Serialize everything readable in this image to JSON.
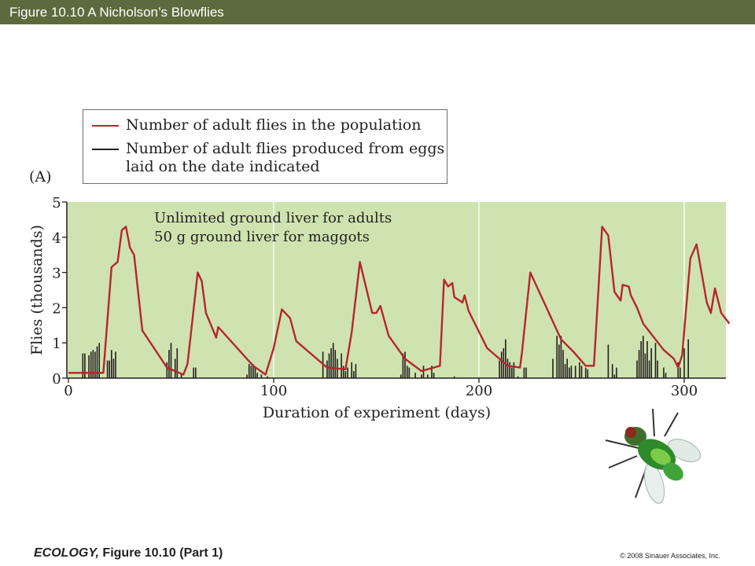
{
  "header": {
    "title": "Figure 10.10  A  Nicholson’s Blowflies"
  },
  "legend": {
    "items": [
      {
        "label": "Number of adult flies in the population",
        "color": "#b5262e"
      },
      {
        "label": "Number of adult flies produced from eggs",
        "label2": "laid on the date indicated",
        "color": "#231f20"
      }
    ]
  },
  "panel_label": "(A)",
  "annotation": {
    "line1": "Unlimited ground liver for adults",
    "line2": "50 g ground liver for maggots"
  },
  "footer": {
    "book": "ECOLOGY,",
    "caption": " Figure 10.10 (Part 1)",
    "copyright": "© 2008 Sinauer Associates, Inc."
  },
  "colors": {
    "plot_background": "#cfe3b0",
    "population_line": "#b5262e",
    "bars": "#231f20",
    "title_bar": "#5c6b3d"
  },
  "icons": {
    "fly": "blowfly-illustration-icon"
  },
  "chart_data": {
    "type": "line",
    "xlabel": "Duration of experiment (days)",
    "ylabel": "Flies (thousands)",
    "xlim": [
      0,
      320
    ],
    "ylim": [
      0,
      5
    ],
    "x_ticks": [
      0,
      100,
      200,
      300
    ],
    "y_ticks": [
      0,
      1,
      2,
      3,
      4,
      5
    ],
    "grid": "vertical gridlines at 100, 200, 300",
    "series": [
      {
        "name": "Number of adult flies in the population",
        "type": "line",
        "points": [
          [
            0,
            0.15
          ],
          [
            17,
            0.15
          ],
          [
            21,
            3.15
          ],
          [
            24,
            3.3
          ],
          [
            26,
            4.2
          ],
          [
            28,
            4.3
          ],
          [
            30,
            3.7
          ],
          [
            32,
            3.5
          ],
          [
            36,
            1.35
          ],
          [
            48,
            0.3
          ],
          [
            56,
            0.1
          ],
          [
            58,
            0.4
          ],
          [
            63,
            3.0
          ],
          [
            65,
            2.75
          ],
          [
            67,
            1.85
          ],
          [
            72,
            1.15
          ],
          [
            73,
            1.45
          ],
          [
            90,
            0.35
          ],
          [
            96,
            0.1
          ],
          [
            100,
            0.85
          ],
          [
            104,
            1.95
          ],
          [
            108,
            1.7
          ],
          [
            111,
            1.05
          ],
          [
            126,
            0.3
          ],
          [
            135,
            0.25
          ],
          [
            138,
            1.3
          ],
          [
            142,
            3.3
          ],
          [
            148,
            1.85
          ],
          [
            150,
            1.85
          ],
          [
            152,
            2.05
          ],
          [
            156,
            1.2
          ],
          [
            164,
            0.55
          ],
          [
            172,
            0.2
          ],
          [
            181,
            0.35
          ],
          [
            183,
            2.8
          ],
          [
            185,
            2.6
          ],
          [
            187,
            2.7
          ],
          [
            188,
            2.3
          ],
          [
            192,
            2.15
          ],
          [
            193,
            2.35
          ],
          [
            195,
            1.9
          ],
          [
            204,
            0.85
          ],
          [
            214,
            0.35
          ],
          [
            220,
            0.3
          ],
          [
            221,
            0.75
          ],
          [
            225,
            3.0
          ],
          [
            240,
            1.1
          ],
          [
            246,
            0.75
          ],
          [
            252,
            0.35
          ],
          [
            256,
            0.35
          ],
          [
            260,
            4.3
          ],
          [
            263,
            4.05
          ],
          [
            266,
            2.45
          ],
          [
            269,
            2.2
          ],
          [
            270,
            2.65
          ],
          [
            273,
            2.6
          ],
          [
            274,
            2.35
          ],
          [
            277,
            2.0
          ],
          [
            280,
            1.55
          ],
          [
            290,
            0.8
          ],
          [
            295,
            0.55
          ],
          [
            297,
            0.3
          ],
          [
            299,
            0.65
          ],
          [
            303,
            3.4
          ],
          [
            306,
            3.8
          ],
          [
            311,
            2.15
          ],
          [
            313,
            1.85
          ],
          [
            315,
            2.55
          ],
          [
            318,
            1.85
          ],
          [
            322,
            1.55
          ]
        ]
      },
      {
        "name": "Number of adult flies produced from eggs laid on the date indicated",
        "type": "bar",
        "points": [
          [
            7,
            0.7
          ],
          [
            8,
            0.7
          ],
          [
            10,
            0.65
          ],
          [
            11,
            0.75
          ],
          [
            12,
            0.8
          ],
          [
            13,
            0.75
          ],
          [
            14,
            0.9
          ],
          [
            15,
            1.0
          ],
          [
            19,
            0.5
          ],
          [
            20,
            0.5
          ],
          [
            21,
            0.8
          ],
          [
            22,
            0.55
          ],
          [
            23,
            0.75
          ],
          [
            48,
            0.45
          ],
          [
            49,
            0.8
          ],
          [
            50,
            1.0
          ],
          [
            52,
            0.55
          ],
          [
            53,
            0.85
          ],
          [
            55,
            0.1
          ],
          [
            61,
            0.3
          ],
          [
            62,
            0.3
          ],
          [
            87,
            0.1
          ],
          [
            88,
            0.4
          ],
          [
            89,
            0.35
          ],
          [
            90,
            0.4
          ],
          [
            91,
            0.3
          ],
          [
            92,
            0.15
          ],
          [
            94,
            0.1
          ],
          [
            97,
            0.05
          ],
          [
            124,
            0.75
          ],
          [
            126,
            0.5
          ],
          [
            127,
            0.7
          ],
          [
            128,
            0.85
          ],
          [
            129,
            1.0
          ],
          [
            130,
            0.8
          ],
          [
            131,
            0.55
          ],
          [
            133,
            0.7
          ],
          [
            134,
            0.35
          ],
          [
            135,
            0.2
          ],
          [
            136,
            0.3
          ],
          [
            138,
            0.45
          ],
          [
            139,
            0.2
          ],
          [
            140,
            0.4
          ],
          [
            162,
            0.1
          ],
          [
            163,
            0.7
          ],
          [
            164,
            0.75
          ],
          [
            165,
            0.35
          ],
          [
            166,
            0.3
          ],
          [
            169,
            0.15
          ],
          [
            172,
            0.1
          ],
          [
            173,
            0.35
          ],
          [
            175,
            0.1
          ],
          [
            177,
            0.35
          ],
          [
            178,
            0.15
          ],
          [
            188,
            0.05
          ],
          [
            210,
            0.5
          ],
          [
            211,
            0.75
          ],
          [
            212,
            0.85
          ],
          [
            213,
            1.1
          ],
          [
            214,
            0.55
          ],
          [
            215,
            0.45
          ],
          [
            216,
            0.3
          ],
          [
            217,
            0.45
          ],
          [
            219,
            0.05
          ],
          [
            222,
            0.3
          ],
          [
            223,
            0.3
          ],
          [
            236,
            0.55
          ],
          [
            238,
            1.2
          ],
          [
            239,
            0.95
          ],
          [
            240,
            1.2
          ],
          [
            241,
            0.8
          ],
          [
            242,
            0.4
          ],
          [
            243,
            0.55
          ],
          [
            244,
            0.3
          ],
          [
            245,
            0.35
          ],
          [
            247,
            0.35
          ],
          [
            249,
            0.45
          ],
          [
            250,
            0.35
          ],
          [
            252,
            0.3
          ],
          [
            253,
            0.25
          ],
          [
            263,
            0.95
          ],
          [
            265,
            0.4
          ],
          [
            266,
            0.1
          ],
          [
            267,
            0.3
          ],
          [
            277,
            0.5
          ],
          [
            278,
            0.8
          ],
          [
            279,
            1.05
          ],
          [
            280,
            1.2
          ],
          [
            281,
            0.7
          ],
          [
            282,
            1.05
          ],
          [
            283,
            0.5
          ],
          [
            284,
            0.85
          ],
          [
            286,
            1.0
          ],
          [
            287,
            0.5
          ],
          [
            290,
            0.3
          ],
          [
            291,
            0.15
          ],
          [
            297,
            0.45
          ],
          [
            298,
            0.3
          ],
          [
            300,
            0.85
          ],
          [
            302,
            1.1
          ]
        ]
      }
    ]
  }
}
